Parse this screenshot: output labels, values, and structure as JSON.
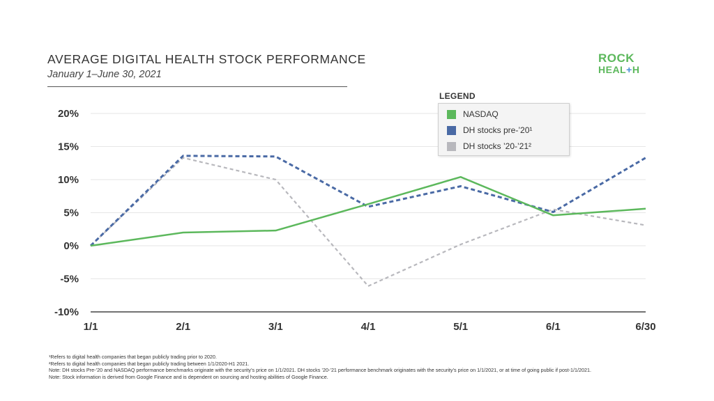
{
  "header": {
    "title": "AVERAGE DIGITAL HEALTH STOCK PERFORMANCE",
    "subtitle": "January 1–June 30, 2021"
  },
  "logo": {
    "line1": "ROCK",
    "line2_a": "HEAL",
    "line2_plus": "+",
    "line2_b": "H"
  },
  "chart_data": {
    "type": "line",
    "title": "AVERAGE DIGITAL HEALTH STOCK PERFORMANCE",
    "subtitle": "January 1–June 30, 2021",
    "categories": [
      "1/1",
      "2/1",
      "3/1",
      "4/1",
      "5/1",
      "6/1",
      "6/30"
    ],
    "y_ticks": [
      20,
      15,
      10,
      5,
      0,
      -5,
      -10
    ],
    "y_tick_labels": [
      "20%",
      "15%",
      "10%",
      "5%",
      "0%",
      "-5%",
      "-10%"
    ],
    "ylim": [
      -10,
      20
    ],
    "grid": true,
    "legend_title": "LEGEND",
    "legend_position": "top-right",
    "series": [
      {
        "name": "NASDAQ",
        "color": "#5cb85c",
        "dash": "solid",
        "values": [
          0.0,
          2.0,
          2.3,
          6.3,
          10.4,
          4.6,
          5.6
        ]
      },
      {
        "name": "DH stocks pre-’20¹",
        "color": "#4a6aa5",
        "dash": "dashed",
        "values": [
          0.0,
          13.6,
          13.5,
          5.9,
          9.0,
          5.1,
          13.3
        ]
      },
      {
        "name": "DH stocks ’20-’21²",
        "color": "#b8b8bd",
        "dash": "dashed",
        "values": [
          0.0,
          13.3,
          10.0,
          -6.1,
          0.2,
          5.5,
          3.1
        ]
      }
    ]
  },
  "footnotes": [
    "¹Refers to digital health companies that began publicly trading prior to 2020.",
    "²Refers to digital health companies that began publicly trading between 1/1/2020-H1 2021.",
    "Note: DH stocks Pre-’20 and NASDAQ performance benchmarks originate with the security’s price on 1/1/2021. DH stocks ’20-’21 performance benchmark originates with the security’s price on 1/1/2021, or at time of going public if post-1/1/2021.",
    "Note: Stock information is derived from Google Finance and is dependent on sourcing and hosting abilities of Google Finance."
  ]
}
